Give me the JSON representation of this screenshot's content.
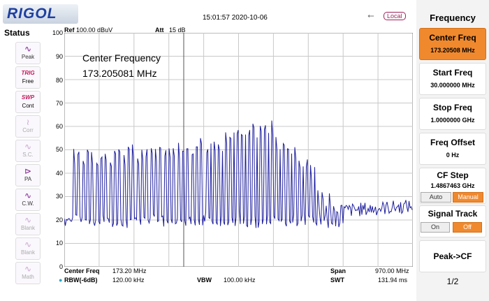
{
  "header": {
    "logo": "RIGOL",
    "datetime": "15:01:57 2020-10-06",
    "local_badge": "Local"
  },
  "status_panel": {
    "title": "Status",
    "buttons": [
      {
        "icon": "peak-icon",
        "label": "Peak",
        "state": "active"
      },
      {
        "icon": "trig-icon",
        "label": "Free",
        "top": "TRIG",
        "state": "trig"
      },
      {
        "icon": "swp-icon",
        "label": "Cont",
        "top": "SWP",
        "state": "trig"
      },
      {
        "icon": "corr-icon",
        "label": "Corr",
        "state": "inactive"
      },
      {
        "icon": "sc-icon",
        "label": "S.C.",
        "state": "inactive"
      },
      {
        "icon": "pa-icon",
        "label": "PA",
        "state": "active"
      },
      {
        "icon": "cw-icon",
        "label": "C.W.",
        "state": "active"
      },
      {
        "icon": "blank-icon",
        "label": "Blank",
        "state": "inactive"
      },
      {
        "icon": "blank-icon",
        "label": "Blank",
        "state": "inactive"
      },
      {
        "icon": "math-icon",
        "label": "Math",
        "state": "inactive"
      }
    ]
  },
  "plot": {
    "ref_label": "Ref",
    "ref_value": "100.00 dBuV",
    "att_label": "Att",
    "att_value": "15 dB",
    "yticks": [
      "100",
      "90",
      "80",
      "70",
      "60",
      "50",
      "40",
      "30",
      "20",
      "10",
      "0"
    ],
    "annotation_line1": "Center Frequency",
    "annotation_line2": "173.205081 MHz",
    "trace_color": "#1e1e9e"
  },
  "bottom_bar": {
    "center_freq_label": "Center Freq",
    "center_freq_value": "173.20 MHz",
    "span_label": "Span",
    "span_value": "970.00 MHz",
    "rbw_label": "RBW(-6dB)",
    "rbw_value": "120.00 kHz",
    "vbw_label": "VBW",
    "vbw_value": "100.00 kHz",
    "swt_label": "SWT",
    "swt_value": "131.94 ms"
  },
  "menu": {
    "title": "Frequency",
    "center_freq": {
      "label": "Center Freq",
      "value": "173.20508 MHz"
    },
    "start_freq": {
      "label": "Start Freq",
      "value": "30.000000 MHz"
    },
    "stop_freq": {
      "label": "Stop Freq",
      "value": "1.0000000 GHz"
    },
    "freq_offset": {
      "label": "Freq Offset",
      "value": "0 Hz"
    },
    "cf_step": {
      "label": "CF Step",
      "value": "1.4867463 GHz",
      "auto": "Auto",
      "manual": "Manual"
    },
    "signal_track": {
      "label": "Signal Track",
      "on": "On",
      "off": "Off"
    },
    "peak_cf": "Peak->CF",
    "page": "1/2"
  },
  "chart_data": {
    "type": "line",
    "ylim": [
      0,
      100
    ],
    "xlim_mhz": [
      30,
      1000
    ],
    "ylabel": "dBuV",
    "grid": true
  }
}
